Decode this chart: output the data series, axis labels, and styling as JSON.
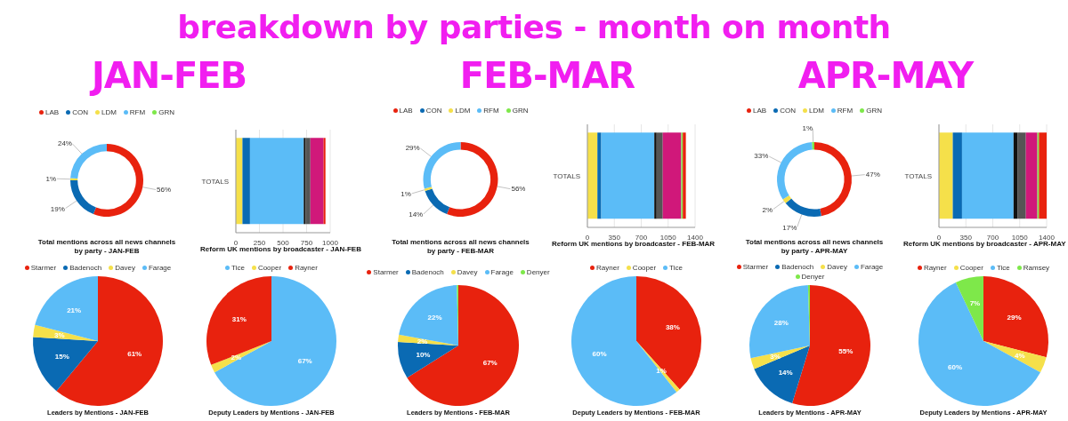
{
  "chart_data": [
    {
      "type": "other",
      "title": "breakdown by parties - month on month"
    },
    {
      "type": "other",
      "title": "JAN-FEB"
    },
    {
      "type": "other",
      "title": "FEB-MAR"
    },
    {
      "type": "other",
      "title": "APR-MAY"
    },
    {
      "type": "donut",
      "title": "Total mentions across all news channels by party - JAN-FEB",
      "categories": [
        "LAB",
        "CON",
        "LDM",
        "RFM",
        "GRN"
      ],
      "values": [
        56,
        19,
        1,
        24,
        0
      ],
      "value_labels": [
        "56%",
        "19%",
        "1%",
        "24%",
        null
      ],
      "colors": [
        "#e8220e",
        "#0a6ab3",
        "#f5e04a",
        "#5bbcf7",
        "#7ee84a"
      ],
      "legend": "top"
    },
    {
      "type": "bar",
      "title": "Reform UK mentions by broadcaster - JAN-FEB",
      "orientation": "horizontal",
      "stacked": true,
      "categories": [
        "TOTALS"
      ],
      "xlim": [
        0,
        1000
      ],
      "xticks": [
        0,
        250,
        500,
        750,
        1000
      ],
      "grid": "x",
      "series": [
        {
          "color": "#f5e04a",
          "values": [
            70
          ]
        },
        {
          "color": "#0a6ab3",
          "values": [
            80
          ]
        },
        {
          "color": "#5bbcf7",
          "values": [
            570
          ]
        },
        {
          "color": "#111111",
          "values": [
            20
          ]
        },
        {
          "color": "#555555",
          "values": [
            50
          ]
        },
        {
          "color": "#d0187a",
          "values": [
            140
          ]
        },
        {
          "color": "#e8220e",
          "values": [
            20
          ]
        }
      ]
    },
    {
      "type": "donut",
      "title": "Total mentions across all news channels by party - FEB-MAR",
      "categories": [
        "LAB",
        "CON",
        "LDM",
        "RFM",
        "GRN"
      ],
      "values": [
        56,
        14,
        1,
        29,
        0
      ],
      "value_labels": [
        "56%",
        "14%",
        "1%",
        "29%",
        null
      ],
      "colors": [
        "#e8220e",
        "#0a6ab3",
        "#f5e04a",
        "#5bbcf7",
        "#7ee84a"
      ],
      "legend": "top"
    },
    {
      "type": "bar",
      "title": "Reform UK mentions by broadcaster - FEB-MAR",
      "orientation": "horizontal",
      "stacked": true,
      "categories": [
        "TOTALS"
      ],
      "xlim": [
        0,
        1400
      ],
      "xticks": [
        0,
        350,
        700,
        1050,
        1400
      ],
      "grid": "x",
      "series": [
        {
          "color": "#f5e04a",
          "values": [
            130
          ]
        },
        {
          "color": "#0a6ab3",
          "values": [
            50
          ]
        },
        {
          "color": "#5bbcf7",
          "values": [
            690
          ]
        },
        {
          "color": "#111111",
          "values": [
            30
          ]
        },
        {
          "color": "#555555",
          "values": [
            80
          ]
        },
        {
          "color": "#d0187a",
          "values": [
            240
          ]
        },
        {
          "color": "#7ee84a",
          "values": [
            20
          ]
        },
        {
          "color": "#e8220e",
          "values": [
            40
          ]
        }
      ]
    },
    {
      "type": "donut",
      "title": "Total mentions across all news channels by party - APR-MAY",
      "categories": [
        "LAB",
        "CON",
        "LDM",
        "RFM",
        "GRN"
      ],
      "values": [
        47,
        17,
        2,
        33,
        1
      ],
      "value_labels": [
        "47%",
        "17%",
        "2%",
        "33%",
        "1%"
      ],
      "colors": [
        "#e8220e",
        "#0a6ab3",
        "#f5e04a",
        "#5bbcf7",
        "#7ee84a"
      ],
      "legend": "top"
    },
    {
      "type": "bar",
      "title": "Reform UK mentions by broadcaster - APR-MAY",
      "orientation": "horizontal",
      "stacked": true,
      "categories": [
        "TOTALS"
      ],
      "xlim": [
        0,
        1400
      ],
      "xticks": [
        0,
        350,
        700,
        1050,
        1400
      ],
      "grid": "x",
      "series": [
        {
          "color": "#f5e04a",
          "values": [
            180
          ]
        },
        {
          "color": "#0a6ab3",
          "values": [
            120
          ]
        },
        {
          "color": "#5bbcf7",
          "values": [
            670
          ]
        },
        {
          "color": "#111111",
          "values": [
            50
          ]
        },
        {
          "color": "#555555",
          "values": [
            110
          ]
        },
        {
          "color": "#d0187a",
          "values": [
            150
          ]
        },
        {
          "color": "#7ee84a",
          "values": [
            20
          ]
        },
        {
          "color": "#e8220e",
          "values": [
            100
          ]
        }
      ]
    },
    {
      "type": "pie",
      "title": "Leaders by Mentions - JAN-FEB",
      "categories": [
        "Starmer",
        "Badenoch",
        "Davey",
        "Farage"
      ],
      "values": [
        61,
        15,
        3,
        21
      ],
      "value_labels": [
        "61%",
        "15%",
        "3%",
        "21%"
      ],
      "colors": [
        "#e8220e",
        "#0a6ab3",
        "#f5e04a",
        "#5bbcf7"
      ],
      "legend": "top"
    },
    {
      "type": "pie",
      "title": "Deputy Leaders by Mentions - JAN-FEB",
      "categories": [
        "Tice",
        "Cooper",
        "Rayner"
      ],
      "values": [
        67,
        2,
        31
      ],
      "value_labels": [
        "67%",
        "2%",
        "31%"
      ],
      "colors": [
        "#5bbcf7",
        "#f5e04a",
        "#e8220e"
      ],
      "legend": "top"
    },
    {
      "type": "pie",
      "title": "Leaders by Mentions - FEB-MAR",
      "categories": [
        "Starmer",
        "Badenoch",
        "Davey",
        "Farage",
        "Denyer"
      ],
      "values": [
        67,
        10,
        2,
        22,
        0.4
      ],
      "value_labels": [
        "67%",
        "10%",
        "2%",
        "22%",
        null
      ],
      "colors": [
        "#e8220e",
        "#0a6ab3",
        "#f5e04a",
        "#5bbcf7",
        "#7ee84a"
      ],
      "legend": "top"
    },
    {
      "type": "pie",
      "title": "Deputy Leaders by Mentions - FEB-MAR",
      "categories": [
        "Rayner",
        "Cooper",
        "Tice"
      ],
      "values": [
        38,
        1,
        60
      ],
      "value_labels": [
        "38%",
        "1%",
        "60%"
      ],
      "colors": [
        "#e8220e",
        "#f5e04a",
        "#5bbcf7"
      ],
      "legend": "top"
    },
    {
      "type": "pie",
      "title": "Leaders by Mentions - APR-MAY",
      "categories": [
        "Starmer",
        "Badenoch",
        "Davey",
        "Farage",
        "Denyer"
      ],
      "values": [
        55,
        14,
        3,
        28,
        0.5
      ],
      "value_labels": [
        "55%",
        "14%",
        "3%",
        "28%",
        null
      ],
      "colors": [
        "#e8220e",
        "#0a6ab3",
        "#f5e04a",
        "#5bbcf7",
        "#7ee84a"
      ],
      "legend": "top"
    },
    {
      "type": "pie",
      "title": "Deputy Leaders by Mentions - APR-MAY",
      "categories": [
        "Rayner",
        "Cooper",
        "Tice",
        "Ramsey"
      ],
      "values": [
        29,
        4,
        60,
        7
      ],
      "value_labels": [
        "29%",
        "4%",
        "60%",
        "7%"
      ],
      "colors": [
        "#e8220e",
        "#f5e04a",
        "#5bbcf7",
        "#7ee84a"
      ],
      "legend": "top"
    }
  ]
}
